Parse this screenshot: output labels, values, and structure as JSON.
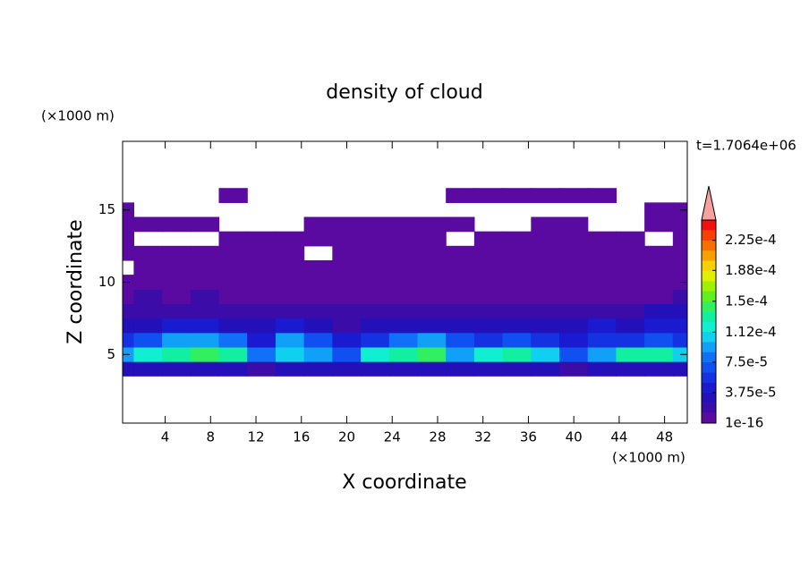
{
  "chart_data": {
    "type": "contour",
    "title": "density of cloud",
    "xlabel": "X coordinate",
    "ylabel": "Z coordinate",
    "x_unit_label": "(×1000 m)",
    "y_unit_label": "(×1000 m)",
    "annotation": "t=1.7064e+06",
    "xlim": [
      0.25,
      50
    ],
    "ylim": [
      0.25,
      19.75
    ],
    "xticks": [
      4,
      8,
      12,
      16,
      20,
      24,
      28,
      32,
      36,
      40,
      44,
      48
    ],
    "yticks": [
      5,
      10,
      15
    ],
    "x": [
      0,
      2.5,
      5,
      7.5,
      10,
      12.5,
      15,
      17.5,
      20,
      22.5,
      25,
      27.5,
      30,
      32.5,
      35,
      37.5,
      40,
      42.5,
      45,
      47.5,
      50
    ],
    "y": [
      4,
      5,
      6,
      7,
      8,
      9,
      10,
      11,
      12,
      13,
      14,
      15,
      16
    ],
    "z": [
      [
        3e-05,
        3e-05,
        3.5e-05,
        3e-05,
        3e-05,
        2.5e-05,
        3e-05,
        3e-05,
        3.5e-05,
        3e-05,
        3e-05,
        3e-05,
        3e-05,
        3.5e-05,
        3e-05,
        3e-05,
        2.5e-05,
        3e-05,
        3e-05,
        3e-05,
        3e-05
      ],
      [
        0.0001,
        0.00012,
        0.00013,
        0.00014,
        0.00013,
        8e-05,
        0.00011,
        0.0001,
        7e-05,
        0.00012,
        0.00013,
        0.00014,
        9e-05,
        0.00012,
        0.00013,
        0.00011,
        7e-05,
        9e-05,
        0.00013,
        0.00013,
        0.00011
      ],
      [
        6e-05,
        7e-05,
        9e-05,
        0.0001,
        8e-05,
        5e-05,
        9e-05,
        7e-05,
        4e-05,
        6e-05,
        8e-05,
        9e-05,
        7e-05,
        6e-05,
        7e-05,
        6e-05,
        5e-05,
        6e-05,
        6e-05,
        7e-05,
        6e-05
      ],
      [
        3e-05,
        3e-05,
        4e-05,
        4e-05,
        3e-05,
        3e-05,
        4e-05,
        3e-05,
        2.5e-05,
        3e-05,
        3e-05,
        3.5e-05,
        3e-05,
        3e-05,
        3e-05,
        3e-05,
        3e-05,
        4e-05,
        3e-05,
        4e-05,
        4e-05
      ],
      [
        2e-05,
        2e-05,
        2e-05,
        2e-05,
        2e-05,
        1.5e-05,
        2e-05,
        2e-05,
        1.5e-05,
        2e-05,
        2e-05,
        2e-05,
        2e-05,
        1.5e-05,
        2e-05,
        2e-05,
        2e-05,
        2e-05,
        2e-05,
        3e-05,
        3e-05
      ],
      [
        1e-05,
        1.5e-05,
        1e-05,
        1.5e-05,
        1e-05,
        1e-05,
        1e-05,
        1e-05,
        1e-05,
        1e-05,
        1e-05,
        1e-05,
        1e-05,
        1e-05,
        1e-05,
        1e-05,
        1e-05,
        1e-05,
        1e-05,
        1e-05,
        1.5e-05
      ],
      [
        5e-06,
        5e-06,
        8e-06,
        8e-06,
        5e-06,
        5e-06,
        5e-06,
        5e-06,
        5e-06,
        5e-06,
        5e-06,
        5e-06,
        5e-06,
        5e-06,
        5e-06,
        5e-06,
        5e-06,
        5e-06,
        5e-06,
        5e-06,
        5e-06
      ],
      [
        0,
        1e-06,
        2e-06,
        3e-06,
        2e-06,
        1e-06,
        1e-06,
        1e-06,
        1e-06,
        1e-06,
        2e-06,
        1e-06,
        1e-06,
        1e-06,
        1e-06,
        1e-06,
        1e-06,
        1e-06,
        1e-06,
        1e-06,
        1e-06
      ],
      [
        1e-06,
        1e-06,
        1e-06,
        1e-06,
        1e-06,
        1e-06,
        1e-06,
        0,
        1e-06,
        1e-06,
        1e-06,
        1e-06,
        1e-06,
        1e-06,
        1e-06,
        1e-06,
        1e-06,
        1e-06,
        1e-06,
        1e-06,
        1e-06
      ],
      [
        1e-06,
        0,
        0,
        0,
        1e-06,
        1e-06,
        1e-06,
        1e-06,
        1e-06,
        1e-06,
        1e-06,
        1e-06,
        0,
        1e-06,
        1e-06,
        1e-06,
        1e-06,
        1e-06,
        1e-06,
        0,
        1e-06
      ],
      [
        1e-06,
        1e-06,
        1e-06,
        1e-06,
        0,
        0,
        0,
        1e-06,
        1e-06,
        1e-06,
        1e-06,
        1e-06,
        1e-06,
        0,
        0,
        1e-06,
        1e-06,
        0,
        0,
        1e-06,
        1e-06
      ],
      [
        1e-06,
        0,
        0,
        0,
        0,
        0,
        0,
        0,
        0,
        0,
        0,
        0,
        0,
        0,
        0,
        0,
        0,
        0,
        0,
        1e-06,
        1e-06
      ],
      [
        0,
        0,
        0,
        0,
        1e-06,
        0,
        0,
        0,
        0,
        0,
        0,
        0,
        1e-06,
        1e-06,
        1e-06,
        1e-06,
        1e-06,
        1e-06,
        0,
        0,
        0
      ]
    ],
    "clim": [
      1e-16,
      0.00025
    ],
    "cticks": [
      1e-16,
      {
        "value": 3.75e-05,
        "label": "3.75e-5"
      },
      {
        "value": 7.5e-05,
        "label": "7.5e-5"
      },
      {
        "value": 0.000112,
        "label": "1.12e-4"
      },
      {
        "value": 0.00015,
        "label": "1.5e-4"
      },
      {
        "value": 0.000188,
        "label": "1.88e-4"
      },
      {
        "value": 0.000225,
        "label": "2.25e-4"
      }
    ],
    "colors": [
      "#5a0aa0",
      "#3c0ca8",
      "#2410b8",
      "#1a1ad0",
      "#1532e2",
      "#1050f0",
      "#1070f8",
      "#10a0f8",
      "#10d0f0",
      "#10f0d0",
      "#10f0a0",
      "#30f060",
      "#60f020",
      "#a0f000",
      "#e0f000",
      "#f8d000",
      "#f8a000",
      "#f87000",
      "#f84000",
      "#f01010"
    ],
    "extend_color": "#f8a0a0"
  }
}
